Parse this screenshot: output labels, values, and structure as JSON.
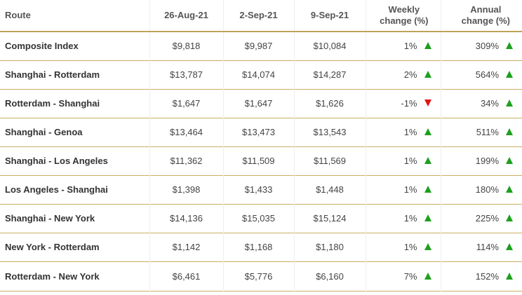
{
  "table": {
    "headers": {
      "route": "Route",
      "date1": "26-Aug-21",
      "date2": "2-Sep-21",
      "date3": "9-Sep-21",
      "weekly_line1": "Weekly",
      "weekly_line2": "change (%)",
      "annual_line1": "Annual",
      "annual_line2": "change (%)"
    },
    "rows": [
      {
        "route": "Composite Index",
        "d1": "$9,818",
        "d2": "$9,987",
        "d3": "$10,084",
        "weekly": "1%",
        "weekly_dir": "up",
        "annual": "309%",
        "annual_dir": "up"
      },
      {
        "route": "Shanghai - Rotterdam",
        "d1": "$13,787",
        "d2": "$14,074",
        "d3": "$14,287",
        "weekly": "2%",
        "weekly_dir": "up",
        "annual": "564%",
        "annual_dir": "up"
      },
      {
        "route": "Rotterdam - Shanghai",
        "d1": "$1,647",
        "d2": "$1,647",
        "d3": "$1,626",
        "weekly": "-1%",
        "weekly_dir": "down",
        "annual": "34%",
        "annual_dir": "up"
      },
      {
        "route": "Shanghai - Genoa",
        "d1": "$13,464",
        "d2": "$13,473",
        "d3": "$13,543",
        "weekly": "1%",
        "weekly_dir": "up",
        "annual": "511%",
        "annual_dir": "up"
      },
      {
        "route": "Shanghai - Los Angeles",
        "d1": "$11,362",
        "d2": "$11,509",
        "d3": "$11,569",
        "weekly": "1%",
        "weekly_dir": "up",
        "annual": "199%",
        "annual_dir": "up"
      },
      {
        "route": "Los Angeles - Shanghai",
        "d1": "$1,398",
        "d2": "$1,433",
        "d3": "$1,448",
        "weekly": "1%",
        "weekly_dir": "up",
        "annual": "180%",
        "annual_dir": "up"
      },
      {
        "route": "Shanghai - New York",
        "d1": "$14,136",
        "d2": "$15,035",
        "d3": "$15,124",
        "weekly": "1%",
        "weekly_dir": "up",
        "annual": "225%",
        "annual_dir": "up"
      },
      {
        "route": "New York - Rotterdam",
        "d1": "$1,142",
        "d2": "$1,168",
        "d3": "$1,180",
        "weekly": "1%",
        "weekly_dir": "up",
        "annual": "114%",
        "annual_dir": "up"
      },
      {
        "route": "Rotterdam - New York",
        "d1": "$6,461",
        "d2": "$5,776",
        "d3": "$6,160",
        "weekly": "7%",
        "weekly_dir": "up",
        "annual": "152%",
        "annual_dir": "up"
      }
    ]
  },
  "colors": {
    "up_arrow": "#1da01d",
    "down_arrow": "#e01515",
    "rule_gold": "#c9ad62"
  },
  "icons": {
    "up": "triangle-up-icon",
    "down": "triangle-down-icon"
  }
}
